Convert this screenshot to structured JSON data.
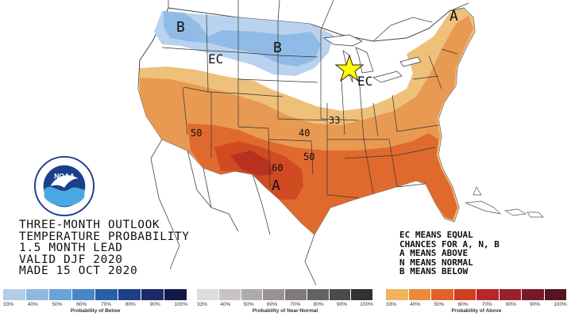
{
  "title_lines": [
    "THREE-MONTH OUTLOOK",
    "TEMPERATURE PROBABILITY",
    "1.5 MONTH LEAD",
    "VALID DJF 2020",
    "MADE 15 OCT 2020"
  ],
  "legend_note": [
    "EC MEANS EQUAL",
    "CHANCES FOR A, N, B",
    "A MEANS ABOVE",
    "N MEANS NORMAL",
    "B MEANS BELOW"
  ],
  "map_labels": {
    "b_northwest": "B",
    "b_dakotas": "B",
    "ec_west": "EC",
    "ec_midwest": "EC",
    "a_northeast": "A",
    "a_texas": "A",
    "contour_33": "33",
    "contour_40": "40",
    "contour_50_west": "50",
    "contour_50_south": "50",
    "contour_60": "60"
  },
  "logo": {
    "name": "NOAA",
    "ring_text": "NATIONAL OCEANIC AND ATMOSPHERIC ADMINISTRATION · U.S. DEPARTMENT OF COMMERCE"
  },
  "scales": {
    "below": {
      "caption": "Probability of Below",
      "ticks": [
        "33%",
        "40%",
        "50%",
        "60%",
        "70%",
        "80%",
        "90%",
        "100%"
      ],
      "colors": [
        "#b3cde8",
        "#8fb8e0",
        "#6aa3d8",
        "#4a86c6",
        "#2a5fa8",
        "#1d3f86",
        "#1a2a66",
        "#14194a"
      ]
    },
    "normal": {
      "caption": "Probability of Near-Normal",
      "ticks": [
        "33%",
        "40%",
        "50%",
        "60%",
        "70%",
        "80%",
        "90%",
        "100%"
      ],
      "colors": [
        "#e0dcdc",
        "#c9c4c4",
        "#b0abab",
        "#989393",
        "#7f7b7b",
        "#666262",
        "#4d4a4a",
        "#333131"
      ]
    },
    "above": {
      "caption": "Probability of Above",
      "ticks": [
        "33%",
        "40%",
        "50%",
        "60%",
        "70%",
        "80%",
        "90%",
        "100%"
      ],
      "colors": [
        "#f0b45e",
        "#ec8a3c",
        "#e0622a",
        "#cf3e22",
        "#b8262a",
        "#98202c",
        "#78192a",
        "#561420"
      ]
    }
  },
  "colors": {
    "below_33": "#b9d3ee",
    "below_40": "#8fbbe6",
    "above_33": "#efc07a",
    "above_40": "#e89a52",
    "above_50": "#e06a2e",
    "above_60": "#d04a22",
    "above_70": "#b8321e",
    "star": "#ffff00"
  }
}
